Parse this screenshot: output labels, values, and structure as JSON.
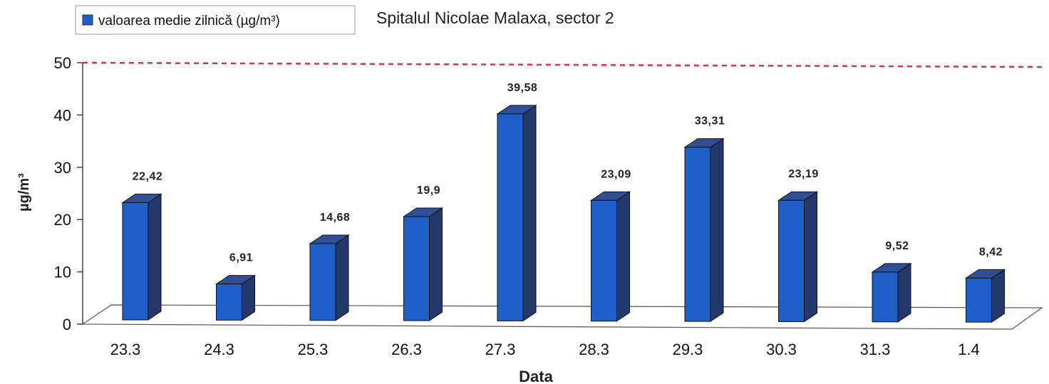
{
  "chart_data": {
    "type": "bar",
    "title": "Spitalul Nicolae Malaxa, sector 2",
    "xlabel": "Data",
    "ylabel": "µg/m³",
    "ylim": [
      0,
      50
    ],
    "yticks": [
      "0",
      "10",
      "20",
      "30",
      "40",
      "50"
    ],
    "categories": [
      "23.3",
      "24.3",
      "25.3",
      "26.3",
      "27.3",
      "28.3",
      "29.3",
      "30.3",
      "31.3",
      "1.4"
    ],
    "series": [
      {
        "name": "valoarea medie zilnică (µg/m³)",
        "values": [
          22.42,
          6.91,
          14.68,
          19.9,
          39.58,
          23.09,
          33.31,
          23.19,
          9.52,
          8.42
        ],
        "labels": [
          "22,42",
          "6,91",
          "14,68",
          "19,9",
          "39,58",
          "23,09",
          "33,31",
          "23,19",
          "9,52",
          "8,42"
        ]
      }
    ],
    "reference_line": {
      "value": 50,
      "style": "dashed"
    },
    "legend": "top-left",
    "grid": false,
    "colors": {
      "bar_front": "#1f5fc8",
      "bar_side": "#23386b",
      "bar_top": "#2f4f96",
      "reference_line": "#d6334a"
    }
  }
}
